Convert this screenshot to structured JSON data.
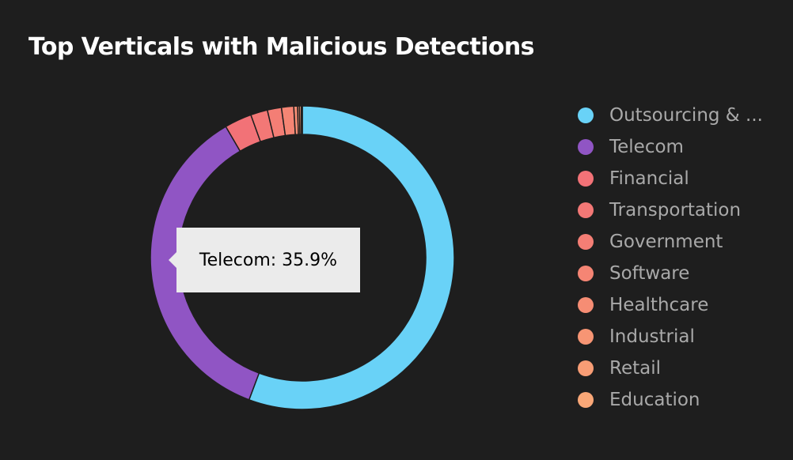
{
  "chart_data": {
    "type": "pie",
    "title": "Top Verticals with Malicious Detections",
    "categories": [
      "Outsourcing & ...",
      "Telecom",
      "Financial",
      "Transportation",
      "Government",
      "Software",
      "Healthcare",
      "Industrial",
      "Retail",
      "Education"
    ],
    "values": [
      55.7,
      35.9,
      2.9,
      1.8,
      1.5,
      1.3,
      0.4,
      0.2,
      0.2,
      0.1
    ],
    "colors": [
      "#69d2f7",
      "#9055c4",
      "#f27277",
      "#f37876",
      "#f47e75",
      "#f58574",
      "#f68d74",
      "#f79574",
      "#f89d75",
      "#f9a777"
    ],
    "legend_position": "right",
    "donut": true
  },
  "tooltip": {
    "text": "Telecom: 35.9%"
  }
}
